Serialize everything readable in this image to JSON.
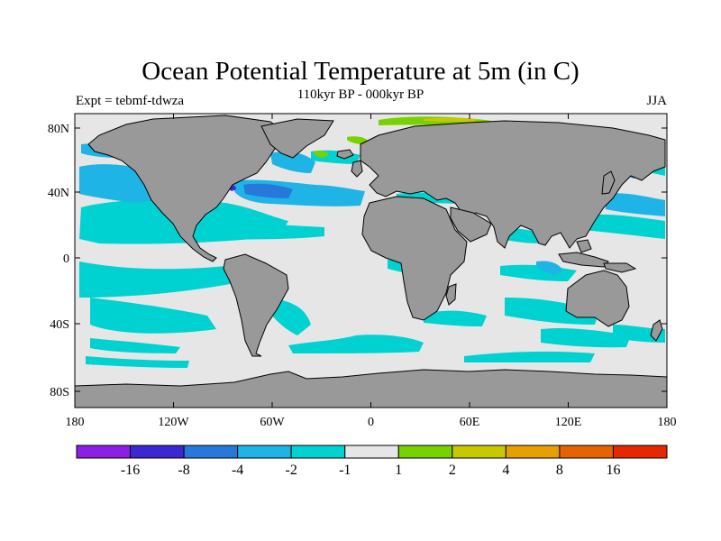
{
  "title": "Ocean Potential Temperature at 5m (in C)",
  "subtitle": "110kyr BP - 000kyr BP",
  "left_label": "Expt = tebmf-tdwza",
  "right_label": "JJA",
  "map": {
    "x_ticks": [
      "180",
      "120W",
      "60W",
      "0",
      "60E",
      "120E",
      "180"
    ],
    "y_ticks": [
      "80N",
      "40N",
      "0",
      "40S",
      "80S"
    ],
    "colors": {
      "land": "#999999",
      "ocean_neutral": "#e6e6e6",
      "cyan": "#00d2d2",
      "light_blue": "#1eb4e6",
      "mid_blue": "#2878dc",
      "dark_blue": "#3c28d2",
      "green": "#78d200"
    }
  },
  "colorbar": {
    "labels": [
      "-16",
      "-8",
      "-4",
      "-2",
      "-1",
      "1",
      "2",
      "4",
      "8",
      "16"
    ],
    "colors": [
      "#8c1ee6",
      "#3c28d2",
      "#2878dc",
      "#1eb4e6",
      "#00d2d2",
      "#e6e6e6",
      "#78d200",
      "#c8c800",
      "#e6a000",
      "#e66400",
      "#e62800"
    ]
  }
}
